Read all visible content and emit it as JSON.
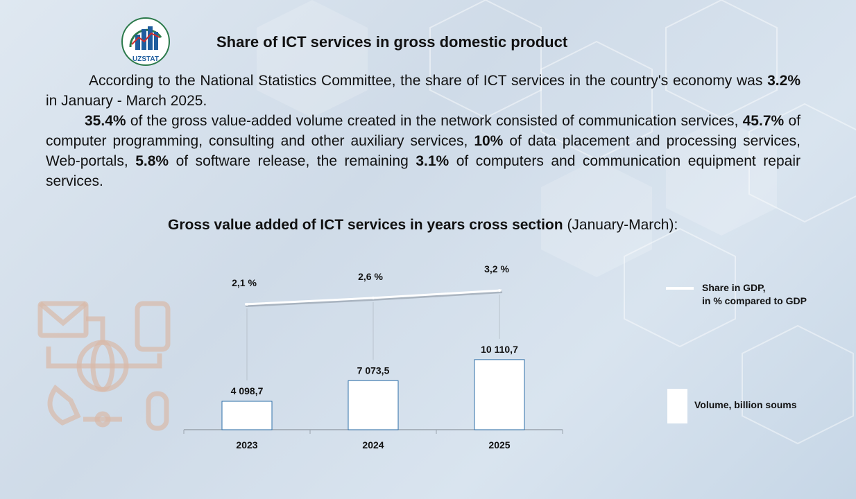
{
  "header": {
    "logo_text": "UZSTAT",
    "title": "Share of ICT services in gross domestic product"
  },
  "paragraphs": [
    [
      {
        "t": "According to the National Statistics Committee, the share of ICT services in the country's economy was ",
        "b": false
      },
      {
        "t": "3.2%",
        "b": true
      },
      {
        "t": " in January - March 2025.",
        "b": false
      }
    ],
    [
      {
        "t": "35.4%",
        "b": true
      },
      {
        "t": " of the gross value-added volume created in the network consisted of communication services, ",
        "b": false
      },
      {
        "t": "45.7%",
        "b": true
      },
      {
        "t": " of computer programming, consulting and other auxiliary services, ",
        "b": false
      },
      {
        "t": "10%",
        "b": true
      },
      {
        "t": " of data placement and processing services, Web-portals, ",
        "b": false
      },
      {
        "t": "5.8%",
        "b": true
      },
      {
        "t": " of software release, the remaining ",
        "b": false
      },
      {
        "t": "3.1%",
        "b": true
      },
      {
        "t": " of computers and communication equipment repair services.",
        "b": false
      }
    ]
  ],
  "chart_data": {
    "type": "bar",
    "title": "Gross value added of ICT services in years cross section",
    "subtitle": "(January-March):",
    "categories": [
      "2023",
      "2024",
      "2025"
    ],
    "series": [
      {
        "name": "Volume, billion soums",
        "type": "bar",
        "values": [
          4098.7,
          7073.5,
          10110.7
        ],
        "labels": [
          "4 098,7",
          "7 073,5",
          "10 110,7"
        ]
      },
      {
        "name": "Share in GDP, in % compared to GDP",
        "type": "line",
        "values": [
          2.1,
          2.6,
          3.2
        ],
        "labels": [
          "2,1 %",
          "2,6 %",
          "3,2 %"
        ]
      }
    ],
    "legend": {
      "line_label_1": "Share in GDP,",
      "line_label_2": "in % compared to GDP",
      "bar_label": "Volume, billion soums"
    },
    "ylim_bar": [
      0,
      14000
    ],
    "colors": {
      "bar_fill": "#ffffff",
      "bar_edge": "#2e6fa8",
      "line": "#ffffff"
    }
  }
}
